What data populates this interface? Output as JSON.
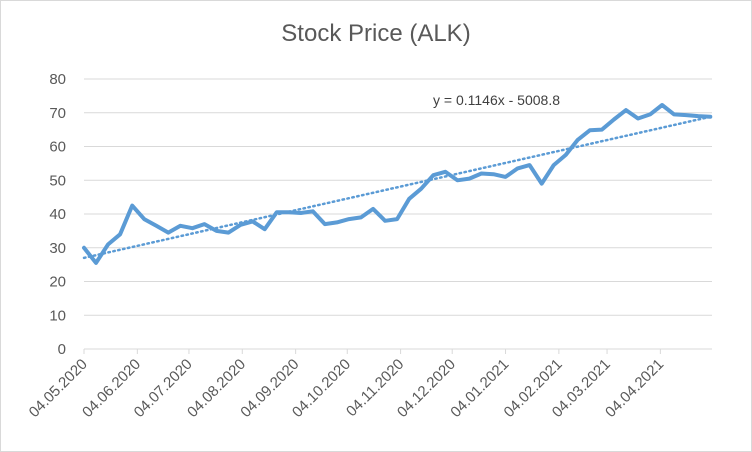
{
  "chart_data": {
    "type": "line",
    "title": "Stock Price (ALK)",
    "xlabel": "",
    "ylabel": "",
    "ylim": [
      0,
      80
    ],
    "yticks": [
      0,
      10,
      20,
      30,
      40,
      50,
      60,
      70,
      80
    ],
    "xlim": [
      "04.05.2020",
      "04.05.2021"
    ],
    "xticks": [
      "04.05.2020",
      "04.06.2020",
      "04.07.2020",
      "04.08.2020",
      "04.09.2020",
      "04.10.2020",
      "04.11.2020",
      "04.12.2020",
      "04.01.2021",
      "04.02.2021",
      "04.03.2021",
      "04.04.2021"
    ],
    "grid": true,
    "series": [
      {
        "color": "#5b9bd5",
        "points": [
          [
            "04.05.2020",
            30.0
          ],
          [
            "11.05.2020",
            25.5
          ],
          [
            "18.05.2020",
            31.0
          ],
          [
            "25.05.2020",
            34.0
          ],
          [
            "01.06.2020",
            42.5
          ],
          [
            "08.06.2020",
            38.5
          ],
          [
            "15.06.2020",
            36.5
          ],
          [
            "22.06.2020",
            34.5
          ],
          [
            "29.06.2020",
            36.5
          ],
          [
            "06.07.2020",
            35.8
          ],
          [
            "13.07.2020",
            37.0
          ],
          [
            "20.07.2020",
            35.0
          ],
          [
            "27.07.2020",
            34.5
          ],
          [
            "03.08.2020",
            36.8
          ],
          [
            "10.08.2020",
            37.8
          ],
          [
            "17.08.2020",
            35.5
          ],
          [
            "24.08.2020",
            40.5
          ],
          [
            "31.08.2020",
            40.5
          ],
          [
            "07.09.2020",
            40.3
          ],
          [
            "14.09.2020",
            40.8
          ],
          [
            "21.09.2020",
            37.0
          ],
          [
            "28.09.2020",
            37.5
          ],
          [
            "05.10.2020",
            38.5
          ],
          [
            "12.10.2020",
            39.0
          ],
          [
            "19.10.2020",
            41.5
          ],
          [
            "26.10.2020",
            38.0
          ],
          [
            "02.11.2020",
            38.5
          ],
          [
            "09.11.2020",
            44.5
          ],
          [
            "16.11.2020",
            47.5
          ],
          [
            "23.11.2020",
            51.5
          ],
          [
            "30.11.2020",
            52.5
          ],
          [
            "07.12.2020",
            50.0
          ],
          [
            "14.12.2020",
            50.5
          ],
          [
            "21.12.2020",
            52.0
          ],
          [
            "28.12.2020",
            51.8
          ],
          [
            "04.01.2021",
            51.0
          ],
          [
            "11.01.2021",
            53.5
          ],
          [
            "18.01.2021",
            54.5
          ],
          [
            "25.01.2021",
            49.0
          ],
          [
            "01.02.2021",
            54.5
          ],
          [
            "08.02.2021",
            57.5
          ],
          [
            "15.02.2021",
            62.0
          ],
          [
            "22.02.2021",
            64.8
          ],
          [
            "01.03.2021",
            65.0
          ],
          [
            "08.03.2021",
            68.0
          ],
          [
            "15.03.2021",
            70.8
          ],
          [
            "22.03.2021",
            68.3
          ],
          [
            "29.03.2021",
            69.5
          ],
          [
            "05.04.2021",
            72.3
          ],
          [
            "12.04.2021",
            69.5
          ],
          [
            "19.04.2021",
            69.3
          ],
          [
            "26.04.2021",
            69.0
          ],
          [
            "03.05.2021",
            68.8
          ]
        ]
      }
    ],
    "trendline": {
      "type": "linear",
      "equation": "y = 0.1146x - 5008.8",
      "color": "#5b9bd5",
      "style": "dotted",
      "start": [
        "04.05.2020",
        27.0
      ],
      "end": [
        "03.05.2021",
        68.8
      ]
    }
  }
}
